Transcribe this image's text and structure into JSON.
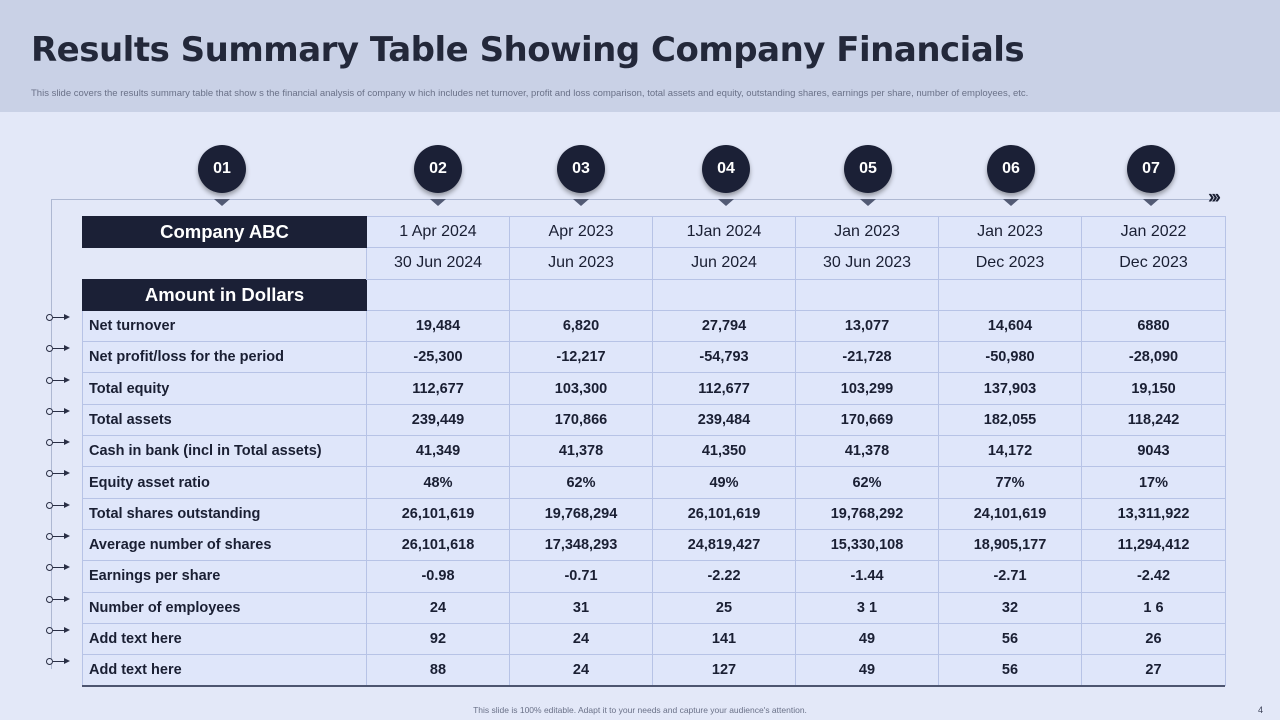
{
  "slide": {
    "title": "Results Summary Table Showing Company Financials",
    "subtitle": "This slide covers the results summary table that show s the financial analysis of company w hich includes net turnover, profit and loss comparison, total assets and equity, outstanding shares, earnings per share, number of employees, etc.",
    "footer": "This slide is 100% editable. Adapt it to your needs and capture your audience's attention.",
    "page_number": "4",
    "chevrons": "›››"
  },
  "steps": [
    "01",
    "02",
    "03",
    "04",
    "05",
    "06",
    "07"
  ],
  "table": {
    "company_label": "Company ABC",
    "amount_label": "Amount in Dollars",
    "period_start": [
      "1 Apr 2024",
      "Apr 2023",
      "1Jan 2024",
      "Jan 2023",
      "Jan 2023",
      "Jan 2022"
    ],
    "period_end": [
      "30 Jun 2024",
      "Jun 2023",
      "Jun 2024",
      "30 Jun 2023",
      "Dec 2023",
      "Dec 2023"
    ],
    "rows": [
      {
        "label": "Net turnover",
        "values": [
          "19,484",
          "6,820",
          "27,794",
          "13,077",
          "14,604",
          "6880"
        ]
      },
      {
        "label": "Net profit/loss for the period",
        "values": [
          "-25,300",
          "-12,217",
          "-54,793",
          "-21,728",
          "-50,980",
          "-28,090"
        ]
      },
      {
        "label": "Total equity",
        "values": [
          "112,677",
          "103,300",
          "112,677",
          "103,299",
          "137,903",
          "19,150"
        ]
      },
      {
        "label": "Total assets",
        "values": [
          "239,449",
          "170,866",
          "239,484",
          "170,669",
          "182,055",
          "118,242"
        ]
      },
      {
        "label": "Cash in bank (incl in Total assets)",
        "values": [
          "41,349",
          "41,378",
          "41,350",
          "41,378",
          "14,172",
          "9043"
        ]
      },
      {
        "label": "Equity asset ratio",
        "values": [
          "48%",
          "62%",
          "49%",
          "62%",
          "77%",
          "17%"
        ]
      },
      {
        "label": "Total shares outstanding",
        "values": [
          "26,101,619",
          "19,768,294",
          "26,101,619",
          "19,768,292",
          "24,101,619",
          "13,311,922"
        ]
      },
      {
        "label": "Average number of shares",
        "values": [
          "26,101,618",
          "17,348,293",
          "24,819,427",
          "15,330,108",
          "18,905,177",
          "11,294,412"
        ]
      },
      {
        "label": "Earnings per share",
        "values": [
          "-0.98",
          "-0.71",
          "-2.22",
          "-1.44",
          "-2.71",
          "-2.42"
        ]
      },
      {
        "label": "Number of employees",
        "values": [
          "24",
          "31",
          "25",
          "3 1",
          "32",
          "1 6"
        ]
      },
      {
        "label": "Add  text here",
        "values": [
          "92",
          "24",
          "141",
          "49",
          "56",
          "26"
        ]
      },
      {
        "label": "Add  text here",
        "values": [
          "88",
          "24",
          "127",
          "49",
          "56",
          "27"
        ]
      }
    ]
  },
  "colors": {
    "dark_navy": "#1b2036",
    "header_band": "#c9d1e6",
    "background": "#e3e8f8",
    "cell": "#dfe6fa"
  }
}
